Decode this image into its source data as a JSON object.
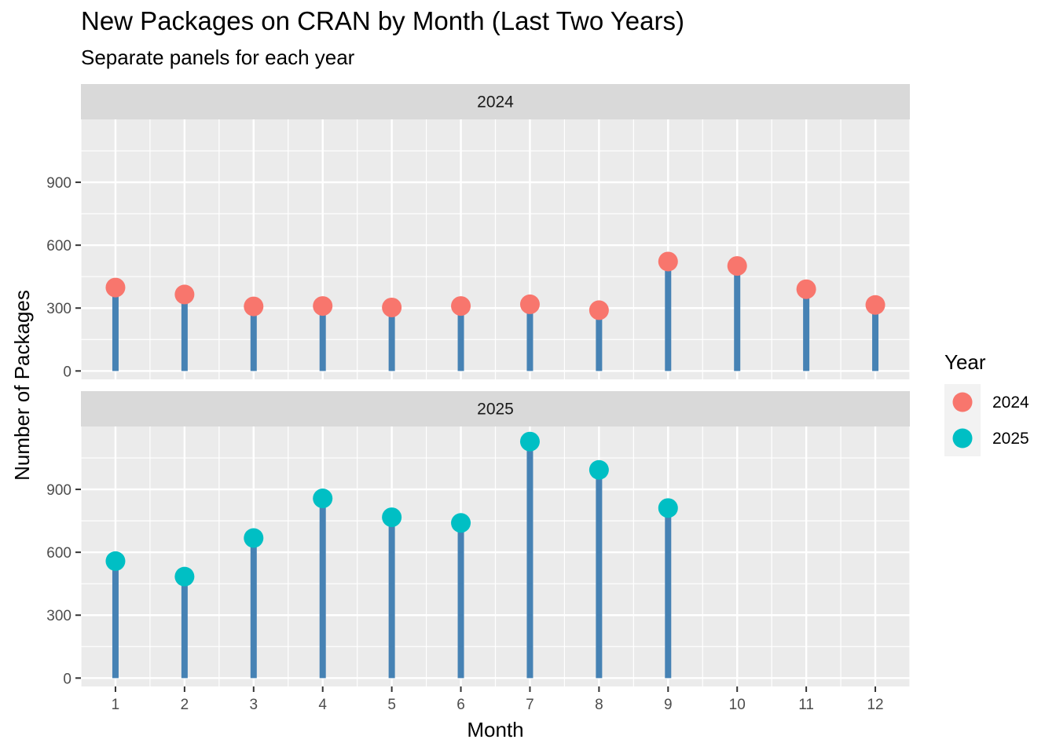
{
  "title": "New Packages on CRAN by Month (Last Two Years)",
  "subtitle": "Separate panels for each year",
  "chart_data": {
    "type": "lollipop",
    "title": "New Packages on CRAN by Month (Last Two Years)",
    "subtitle": "Separate panels for each year",
    "xlabel": "Month",
    "ylabel": "Number of Packages",
    "x_ticks": [
      1,
      2,
      3,
      4,
      5,
      6,
      7,
      8,
      9,
      10,
      11,
      12
    ],
    "y_ticks": [
      0,
      300,
      600,
      900
    ],
    "ylim": [
      -40,
      1200
    ],
    "xlim": [
      0.5,
      12.5
    ],
    "stem_color": "#4682B4",
    "panel_background": "#EBEBEB",
    "strip_background": "#D9D9D9",
    "grid": true,
    "legend": {
      "title": "Year",
      "position": "right",
      "entries": [
        {
          "label": "2024",
          "color": "#F8766D"
        },
        {
          "label": "2025",
          "color": "#00BFC4"
        }
      ]
    },
    "panels": [
      {
        "strip": "2024",
        "color": "#F8766D",
        "months": [
          1,
          2,
          3,
          4,
          5,
          6,
          7,
          8,
          9,
          10,
          11,
          12
        ],
        "values": [
          398,
          365,
          308,
          310,
          303,
          310,
          318,
          290,
          522,
          501,
          390,
          315
        ]
      },
      {
        "strip": "2025",
        "color": "#00BFC4",
        "months": [
          1,
          2,
          3,
          4,
          5,
          6,
          7,
          8,
          9
        ],
        "values": [
          558,
          484,
          668,
          857,
          767,
          740,
          1128,
          993,
          811
        ]
      }
    ]
  }
}
